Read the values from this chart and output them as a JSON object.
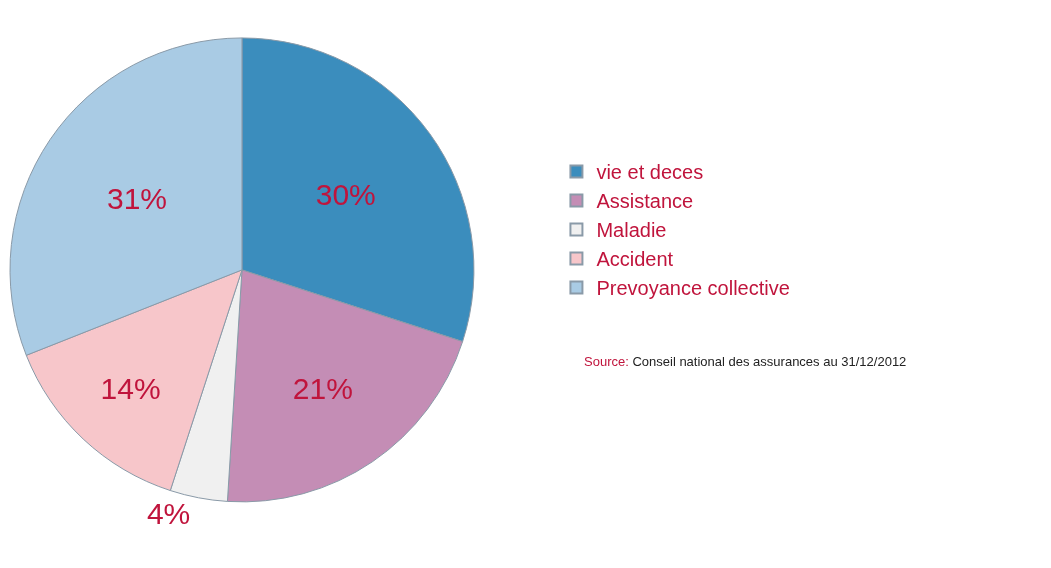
{
  "chart_data": {
    "type": "pie",
    "categories": [
      "vie et deces",
      "Assistance",
      "Maladie",
      "Accident",
      "Prevoyance collective"
    ],
    "values": [
      30,
      21,
      4,
      14,
      31
    ],
    "value_labels": [
      "30%",
      "21%",
      "4%",
      "14%",
      "31%"
    ],
    "colors": [
      "#3b8dbd",
      "#c48db5",
      "#f0f0f0",
      "#f7c6ca",
      "#a9cbe4"
    ],
    "legend": "right",
    "annotations": [
      "Source: Conseil national des assurances au 31/12/2012"
    ]
  }
}
